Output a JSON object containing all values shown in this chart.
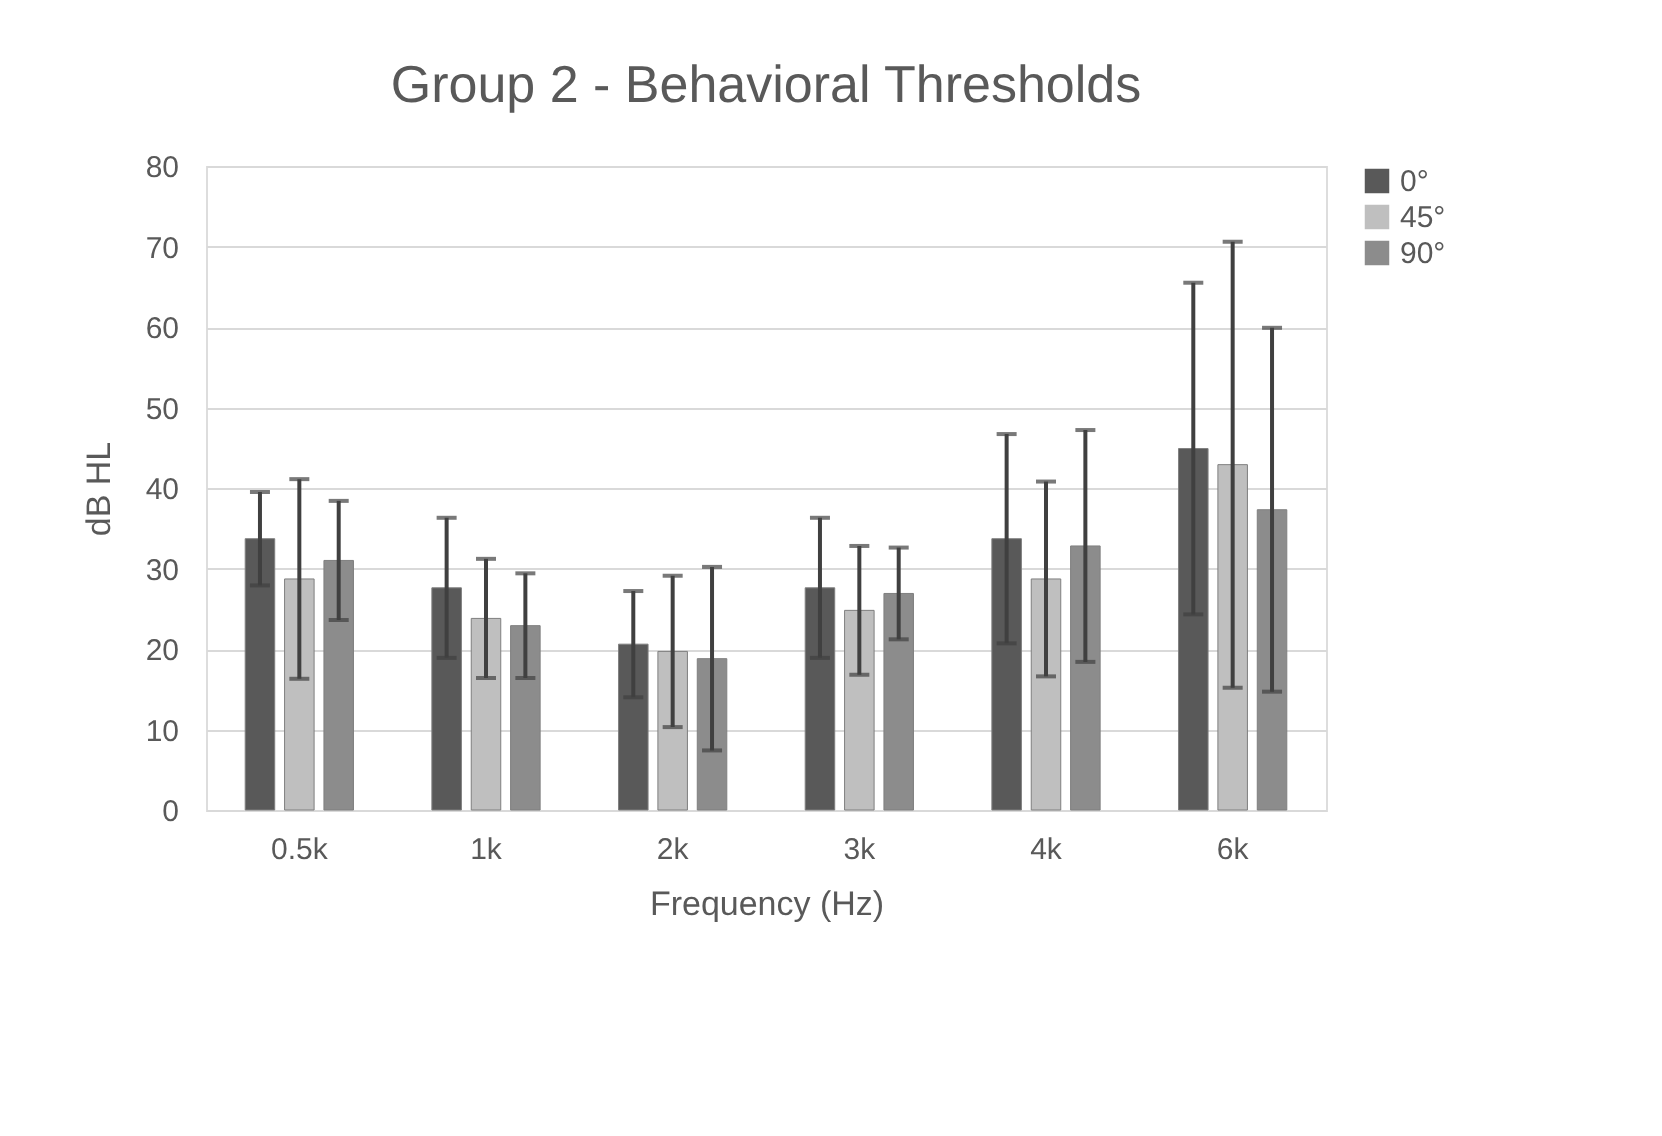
{
  "chart_data": {
    "type": "bar",
    "title": "Group 2 - Behavioral Thresholds",
    "xlabel": "Frequency (Hz)",
    "ylabel": "dB HL",
    "categories": [
      "0.5k",
      "1k",
      "2k",
      "3k",
      "4k",
      "6k"
    ],
    "series": [
      {
        "name": "0°",
        "color": "#595959",
        "values": [
          33.7,
          27.6,
          20.6,
          27.6,
          33.7,
          44.9
        ],
        "errors": [
          5.8,
          8.7,
          6.6,
          8.7,
          13.0,
          20.6
        ]
      },
      {
        "name": "45°",
        "color": "#bfbfbf",
        "values": [
          28.7,
          23.8,
          19.7,
          24.8,
          28.7,
          42.9
        ],
        "errors": [
          12.4,
          7.4,
          9.4,
          8.0,
          12.1,
          27.7
        ]
      },
      {
        "name": "90°",
        "color": "#8c8c8c",
        "values": [
          31.0,
          22.9,
          18.8,
          26.9,
          32.8,
          37.3
        ],
        "errors": [
          7.4,
          6.5,
          11.4,
          5.7,
          14.4,
          22.6
        ]
      }
    ],
    "ylim": [
      0,
      80
    ],
    "yticks": [
      0,
      10,
      20,
      30,
      40,
      50,
      60,
      70,
      80
    ],
    "grid": "y",
    "legend": "right"
  }
}
